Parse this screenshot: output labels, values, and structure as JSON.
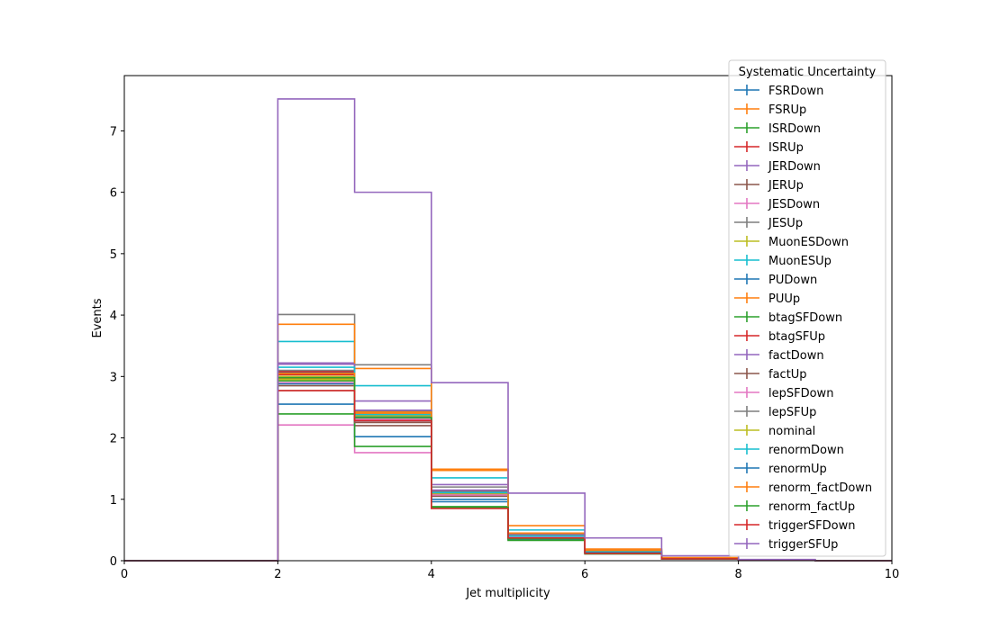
{
  "chart_data": {
    "type": "step-histogram",
    "xlabel": "Jet multiplicity",
    "ylabel": "Events",
    "xlim": [
      0,
      10
    ],
    "ylim": [
      0,
      7.9
    ],
    "xticks": [
      0,
      2,
      4,
      6,
      8,
      10
    ],
    "yticks": [
      0,
      1,
      2,
      3,
      4,
      5,
      6,
      7
    ],
    "grid": false,
    "legend": {
      "title": "Systematic Uncertainty",
      "placement": "upper-right"
    },
    "bin_edges": [
      0,
      1,
      2,
      3,
      4,
      5,
      6,
      7,
      8,
      9,
      10
    ],
    "series": [
      {
        "name": "FSRDown",
        "color": "#1f77b4",
        "values": [
          0,
          0,
          3.06,
          2.35,
          1.05,
          0.38,
          0.13,
          0.03,
          0.01,
          0
        ]
      },
      {
        "name": "FSRUp",
        "color": "#ff7f0e",
        "values": [
          0,
          0,
          2.97,
          2.4,
          1.1,
          0.4,
          0.14,
          0.03,
          0.01,
          0
        ]
      },
      {
        "name": "ISRDown",
        "color": "#2ca02c",
        "values": [
          0,
          0,
          2.93,
          2.43,
          1.12,
          0.4,
          0.14,
          0.03,
          0.01,
          0
        ]
      },
      {
        "name": "ISRUp",
        "color": "#d62728",
        "values": [
          0,
          0,
          3.03,
          2.37,
          1.08,
          0.39,
          0.13,
          0.03,
          0.01,
          0
        ]
      },
      {
        "name": "JERDown",
        "color": "#9467bd",
        "values": [
          0,
          0,
          3.22,
          2.6,
          1.24,
          0.45,
          0.15,
          0.04,
          0.01,
          0
        ]
      },
      {
        "name": "JERUp",
        "color": "#8c564b",
        "values": [
          0,
          0,
          2.77,
          2.2,
          1.14,
          0.42,
          0.14,
          0.03,
          0.01,
          0
        ]
      },
      {
        "name": "JESDown",
        "color": "#e377c2",
        "values": [
          0,
          0,
          2.21,
          1.76,
          0.86,
          0.34,
          0.11,
          0.03,
          0.01,
          0
        ]
      },
      {
        "name": "JESUp",
        "color": "#7f7f7f",
        "values": [
          0,
          0,
          4.01,
          3.19,
          1.2,
          0.44,
          0.15,
          0.04,
          0.01,
          0
        ]
      },
      {
        "name": "MuonESDown",
        "color": "#bcbd22",
        "values": [
          0,
          0,
          2.95,
          2.42,
          1.09,
          0.4,
          0.14,
          0.03,
          0.01,
          0
        ]
      },
      {
        "name": "MuonESUp",
        "color": "#17becf",
        "values": [
          0,
          0,
          3.57,
          2.85,
          1.35,
          0.5,
          0.17,
          0.04,
          0.01,
          0
        ]
      },
      {
        "name": "PUDown",
        "color": "#1f77b4",
        "values": [
          0,
          0,
          2.55,
          2.02,
          0.96,
          0.35,
          0.12,
          0.03,
          0.01,
          0
        ]
      },
      {
        "name": "PUUp",
        "color": "#ff7f0e",
        "values": [
          0,
          0,
          3.85,
          3.13,
          1.49,
          0.57,
          0.19,
          0.05,
          0.01,
          0
        ]
      },
      {
        "name": "btagSFDown",
        "color": "#2ca02c",
        "values": [
          0,
          0,
          2.39,
          1.86,
          0.88,
          0.33,
          0.11,
          0.03,
          0.01,
          0
        ]
      },
      {
        "name": "btagSFUp",
        "color": "#d62728",
        "values": [
          0,
          0,
          3.08,
          2.3,
          1.1,
          0.4,
          0.14,
          0.03,
          0.01,
          0
        ]
      },
      {
        "name": "factDown",
        "color": "#9467bd",
        "values": [
          0,
          0,
          3.2,
          2.45,
          1.15,
          0.42,
          0.14,
          0.03,
          0.01,
          0
        ]
      },
      {
        "name": "factUp",
        "color": "#8c564b",
        "values": [
          0,
          0,
          2.85,
          2.25,
          1.05,
          0.38,
          0.13,
          0.03,
          0.01,
          0
        ]
      },
      {
        "name": "lepSFDown",
        "color": "#e377c2",
        "values": [
          0,
          0,
          2.9,
          2.3,
          1.07,
          0.39,
          0.13,
          0.03,
          0.01,
          0
        ]
      },
      {
        "name": "lepSFUp",
        "color": "#7f7f7f",
        "values": [
          0,
          0,
          3.1,
          2.43,
          1.12,
          0.41,
          0.14,
          0.03,
          0.01,
          0
        ]
      },
      {
        "name": "nominal",
        "color": "#bcbd22",
        "values": [
          0,
          0,
          3.0,
          2.36,
          1.1,
          0.4,
          0.14,
          0.03,
          0.01,
          0
        ]
      },
      {
        "name": "renormDown",
        "color": "#17becf",
        "values": [
          0,
          0,
          3.15,
          2.38,
          1.11,
          0.4,
          0.14,
          0.03,
          0.01,
          0
        ]
      },
      {
        "name": "renormUp",
        "color": "#1f77b4",
        "values": [
          0,
          0,
          2.88,
          2.28,
          1.0,
          0.37,
          0.13,
          0.03,
          0.01,
          0
        ]
      },
      {
        "name": "renorm_factDown",
        "color": "#ff7f0e",
        "values": [
          0,
          0,
          3.05,
          2.42,
          1.47,
          0.45,
          0.17,
          0.04,
          0.01,
          0
        ]
      },
      {
        "name": "renorm_factUp",
        "color": "#2ca02c",
        "values": [
          0,
          0,
          2.98,
          2.33,
          0.87,
          0.36,
          0.12,
          0.03,
          0.01,
          0
        ]
      },
      {
        "name": "triggerSFDown",
        "color": "#d62728",
        "values": [
          0,
          0,
          2.77,
          2.28,
          0.85,
          0.37,
          0.12,
          0.03,
          0.01,
          0
        ]
      },
      {
        "name": "triggerSFUp",
        "color": "#9467bd",
        "values": [
          0,
          0,
          7.52,
          6.0,
          2.9,
          1.1,
          0.37,
          0.08,
          0.02,
          0
        ]
      }
    ]
  }
}
